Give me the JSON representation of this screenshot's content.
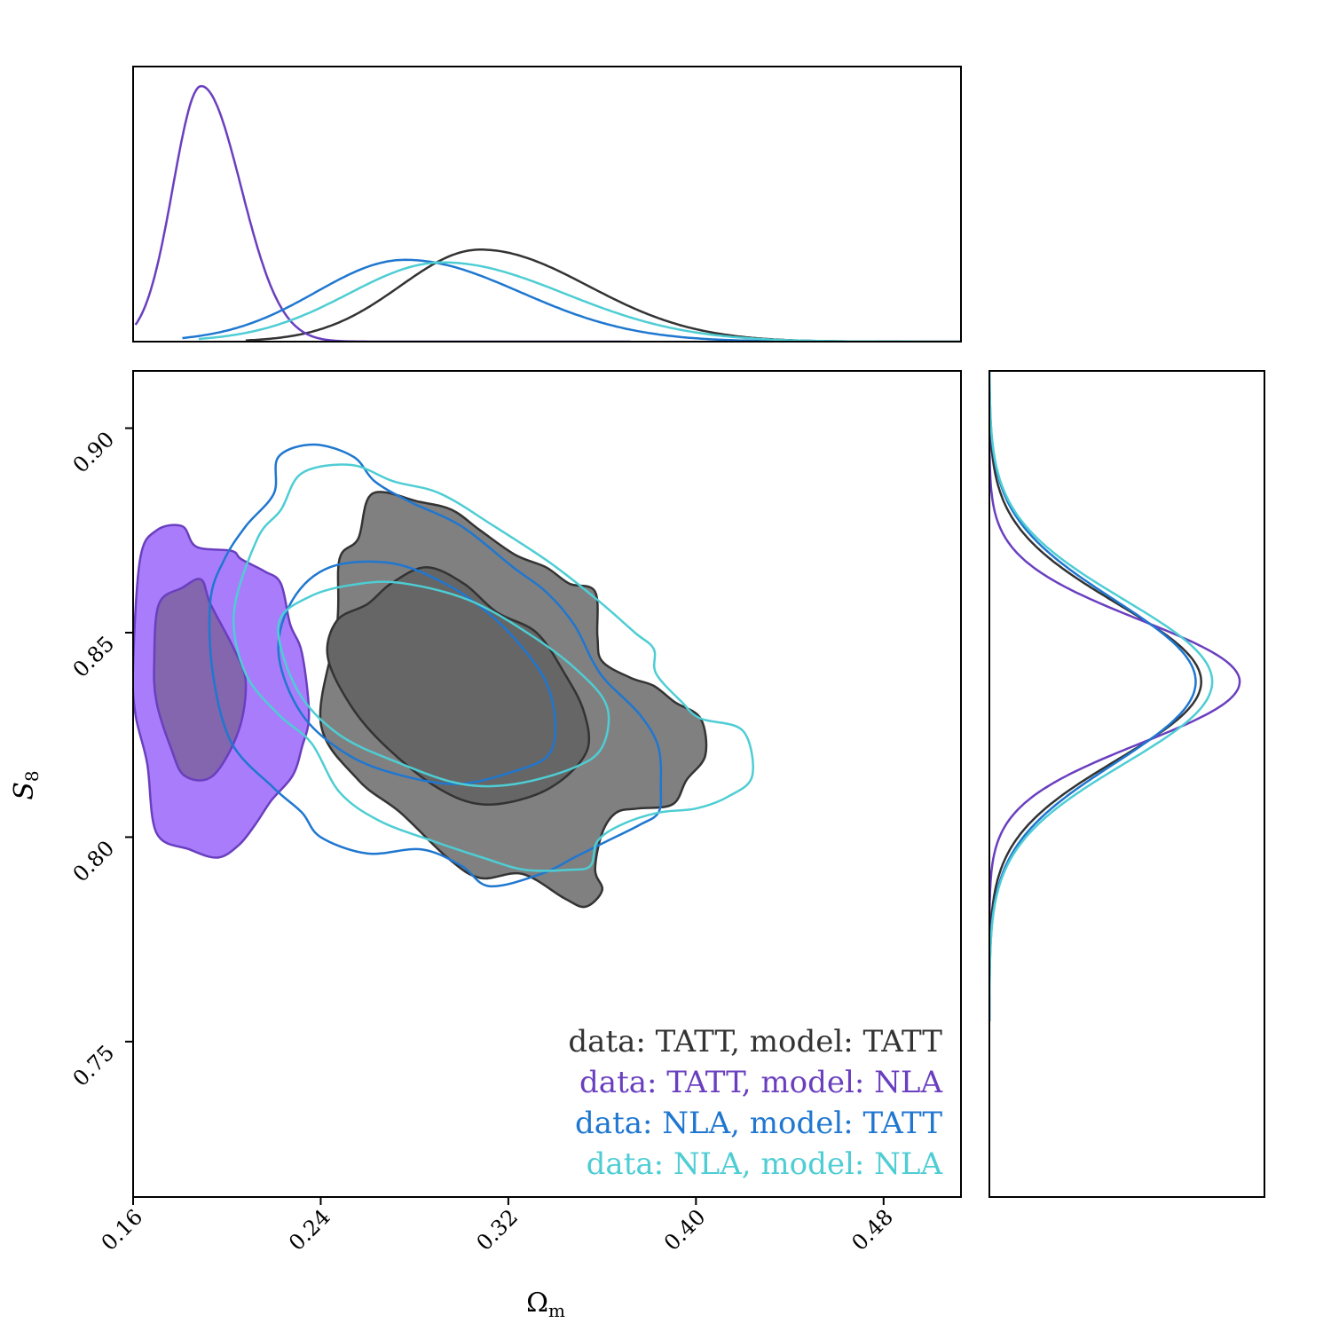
{
  "chart_data": {
    "type": "corner-contour",
    "xlabel": "Ω_m",
    "ylabel": "S_8",
    "xlim": [
      0.16,
      0.513
    ],
    "ylim": [
      0.712,
      0.914
    ],
    "xticks": [
      "0.16",
      "0.24",
      "0.32",
      "0.40",
      "0.48"
    ],
    "yticks": [
      "0.75",
      "0.80",
      "0.85",
      "0.90"
    ],
    "grid": false,
    "legend_position": "bottom-right",
    "series": [
      {
        "name": "data: TATT, model: TATT",
        "color": "#333333",
        "fill_outer": "#808080",
        "fill_inner": "#666666",
        "filled": true,
        "contour_outer": [
          [
            0.24,
            0.828
          ],
          [
            0.247,
            0.852
          ],
          [
            0.248,
            0.868
          ],
          [
            0.256,
            0.873
          ],
          [
            0.262,
            0.884
          ],
          [
            0.282,
            0.882
          ],
          [
            0.296,
            0.88
          ],
          [
            0.308,
            0.875
          ],
          [
            0.323,
            0.869
          ],
          [
            0.336,
            0.866
          ],
          [
            0.346,
            0.862
          ],
          [
            0.357,
            0.86
          ],
          [
            0.358,
            0.849
          ],
          [
            0.36,
            0.843
          ],
          [
            0.372,
            0.839
          ],
          [
            0.382,
            0.837
          ],
          [
            0.391,
            0.833
          ],
          [
            0.402,
            0.829
          ],
          [
            0.404,
            0.82
          ],
          [
            0.396,
            0.814
          ],
          [
            0.39,
            0.808
          ],
          [
            0.375,
            0.807
          ],
          [
            0.366,
            0.806
          ],
          [
            0.36,
            0.801
          ],
          [
            0.357,
            0.792
          ],
          [
            0.36,
            0.787
          ],
          [
            0.353,
            0.783
          ],
          [
            0.344,
            0.785
          ],
          [
            0.326,
            0.791
          ],
          [
            0.308,
            0.79
          ],
          [
            0.294,
            0.795
          ],
          [
            0.274,
            0.806
          ],
          [
            0.256,
            0.814
          ]
        ],
        "contour_inner": [
          [
            0.243,
            0.844
          ],
          [
            0.247,
            0.853
          ],
          [
            0.26,
            0.857
          ],
          [
            0.27,
            0.862
          ],
          [
            0.285,
            0.866
          ],
          [
            0.301,
            0.862
          ],
          [
            0.315,
            0.855
          ],
          [
            0.332,
            0.85
          ],
          [
            0.344,
            0.84
          ],
          [
            0.352,
            0.831
          ],
          [
            0.354,
            0.822
          ],
          [
            0.345,
            0.815
          ],
          [
            0.33,
            0.81
          ],
          [
            0.309,
            0.808
          ],
          [
            0.29,
            0.812
          ],
          [
            0.268,
            0.822
          ],
          [
            0.253,
            0.832
          ]
        ]
      },
      {
        "name": "data: TATT, model: NLA",
        "color": "#6a3fbf",
        "fill_outer": "#a97cfc",
        "fill_inner": "#8366ad",
        "filled": true,
        "contour_outer": [
          [
            0.16,
            0.842
          ],
          [
            0.163,
            0.868
          ],
          [
            0.17,
            0.875
          ],
          [
            0.181,
            0.876
          ],
          [
            0.187,
            0.871
          ],
          [
            0.202,
            0.87
          ],
          [
            0.206,
            0.868
          ],
          [
            0.216,
            0.865
          ],
          [
            0.223,
            0.862
          ],
          [
            0.227,
            0.852
          ],
          [
            0.232,
            0.845
          ],
          [
            0.235,
            0.83
          ],
          [
            0.232,
            0.822
          ],
          [
            0.228,
            0.815
          ],
          [
            0.219,
            0.809
          ],
          [
            0.212,
            0.803
          ],
          [
            0.205,
            0.798
          ],
          [
            0.196,
            0.795
          ],
          [
            0.184,
            0.797
          ],
          [
            0.17,
            0.801
          ],
          [
            0.166,
            0.818
          ],
          [
            0.161,
            0.83
          ]
        ],
        "contour_inner": [
          [
            0.169,
            0.843
          ],
          [
            0.171,
            0.857
          ],
          [
            0.181,
            0.861
          ],
          [
            0.189,
            0.863
          ],
          [
            0.193,
            0.857
          ],
          [
            0.203,
            0.846
          ],
          [
            0.208,
            0.838
          ],
          [
            0.205,
            0.826
          ],
          [
            0.194,
            0.815
          ],
          [
            0.182,
            0.815
          ],
          [
            0.176,
            0.822
          ],
          [
            0.17,
            0.833
          ]
        ]
      },
      {
        "name": "data: NLA, model: TATT",
        "color": "#1f77d0",
        "filled": false,
        "contour_outer": [
          [
            0.193,
            0.858
          ],
          [
            0.199,
            0.868
          ],
          [
            0.208,
            0.876
          ],
          [
            0.22,
            0.884
          ],
          [
            0.222,
            0.893
          ],
          [
            0.237,
            0.896
          ],
          [
            0.254,
            0.893
          ],
          [
            0.263,
            0.887
          ],
          [
            0.278,
            0.882
          ],
          [
            0.3,
            0.876
          ],
          [
            0.322,
            0.866
          ],
          [
            0.336,
            0.86
          ],
          [
            0.348,
            0.852
          ],
          [
            0.356,
            0.843
          ],
          [
            0.362,
            0.838
          ],
          [
            0.376,
            0.83
          ],
          [
            0.384,
            0.822
          ],
          [
            0.385,
            0.812
          ],
          [
            0.384,
            0.806
          ],
          [
            0.376,
            0.803
          ],
          [
            0.362,
            0.799
          ],
          [
            0.355,
            0.797
          ],
          [
            0.348,
            0.795
          ],
          [
            0.334,
            0.791
          ],
          [
            0.312,
            0.788
          ],
          [
            0.3,
            0.793
          ],
          [
            0.283,
            0.797
          ],
          [
            0.26,
            0.796
          ],
          [
            0.24,
            0.8
          ],
          [
            0.232,
            0.806
          ],
          [
            0.22,
            0.812
          ],
          [
            0.202,
            0.823
          ],
          [
            0.194,
            0.84
          ]
        ],
        "contour_inner": [
          [
            0.222,
            0.845
          ],
          [
            0.228,
            0.858
          ],
          [
            0.244,
            0.866
          ],
          [
            0.27,
            0.867
          ],
          [
            0.293,
            0.862
          ],
          [
            0.311,
            0.855
          ],
          [
            0.325,
            0.847
          ],
          [
            0.336,
            0.838
          ],
          [
            0.34,
            0.828
          ],
          [
            0.337,
            0.82
          ],
          [
            0.322,
            0.816
          ],
          [
            0.299,
            0.813
          ],
          [
            0.275,
            0.815
          ],
          [
            0.252,
            0.82
          ],
          [
            0.232,
            0.83
          ]
        ]
      },
      {
        "name": "data: NLA, model: NLA",
        "color": "#4ecdd4",
        "filled": false,
        "contour_outer": [
          [
            0.203,
            0.855
          ],
          [
            0.213,
            0.873
          ],
          [
            0.223,
            0.88
          ],
          [
            0.232,
            0.889
          ],
          [
            0.253,
            0.891
          ],
          [
            0.271,
            0.887
          ],
          [
            0.291,
            0.884
          ],
          [
            0.314,
            0.876
          ],
          [
            0.338,
            0.867
          ],
          [
            0.358,
            0.858
          ],
          [
            0.374,
            0.85
          ],
          [
            0.382,
            0.846
          ],
          [
            0.383,
            0.84
          ],
          [
            0.394,
            0.833
          ],
          [
            0.402,
            0.829
          ],
          [
            0.42,
            0.826
          ],
          [
            0.424,
            0.815
          ],
          [
            0.414,
            0.81
          ],
          [
            0.4,
            0.807
          ],
          [
            0.384,
            0.806
          ],
          [
            0.368,
            0.803
          ],
          [
            0.358,
            0.799
          ],
          [
            0.355,
            0.793
          ],
          [
            0.346,
            0.792
          ],
          [
            0.327,
            0.792
          ],
          [
            0.309,
            0.795
          ],
          [
            0.288,
            0.799
          ],
          [
            0.265,
            0.804
          ],
          [
            0.248,
            0.811
          ],
          [
            0.236,
            0.823
          ],
          [
            0.222,
            0.83
          ],
          [
            0.208,
            0.84
          ]
        ],
        "contour_inner": [
          [
            0.222,
            0.852
          ],
          [
            0.236,
            0.859
          ],
          [
            0.257,
            0.862
          ],
          [
            0.276,
            0.862
          ],
          [
            0.303,
            0.858
          ],
          [
            0.328,
            0.85
          ],
          [
            0.349,
            0.841
          ],
          [
            0.362,
            0.832
          ],
          [
            0.36,
            0.822
          ],
          [
            0.348,
            0.817
          ],
          [
            0.323,
            0.813
          ],
          [
            0.3,
            0.813
          ],
          [
            0.274,
            0.818
          ],
          [
            0.248,
            0.825
          ],
          [
            0.23,
            0.836
          ]
        ]
      }
    ],
    "marginals_x": [
      {
        "name": "data: TATT, model: TATT",
        "color": "#333333",
        "mean": 0.308,
        "sd_left": 0.034,
        "sd_right": 0.046,
        "peak": 0.36,
        "range": [
          0.208,
          0.513
        ]
      },
      {
        "name": "data: TATT, model: NLA",
        "color": "#6a3fbf",
        "mean": 0.189,
        "sd_left": 0.012,
        "sd_right": 0.017,
        "peak": 1.0,
        "range": [
          0.161,
          0.372
        ]
      },
      {
        "name": "data: NLA, model: TATT",
        "color": "#1f77d0",
        "mean": 0.276,
        "sd_left": 0.038,
        "sd_right": 0.049,
        "peak": 0.32,
        "range": [
          0.181,
          0.45
        ]
      },
      {
        "name": "data: NLA, model: NLA",
        "color": "#4ecdd4",
        "mean": 0.292,
        "sd_left": 0.04,
        "sd_right": 0.052,
        "peak": 0.31,
        "range": [
          0.188,
          0.513
        ]
      }
    ],
    "marginals_y": [
      {
        "name": "data: TATT, model: TATT",
        "color": "#333333",
        "mean": 0.838,
        "sd": 0.019,
        "peak": 0.77
      },
      {
        "name": "data: TATT, model: NLA",
        "color": "#6a3fbf",
        "mean": 0.838,
        "sd": 0.015,
        "peak": 0.91
      },
      {
        "name": "data: NLA, model: TATT",
        "color": "#1f77d0",
        "mean": 0.838,
        "sd": 0.02,
        "peak": 0.75
      },
      {
        "name": "data: NLA, model: NLA",
        "color": "#4ecdd4",
        "mean": 0.838,
        "sd": 0.02,
        "peak": 0.81
      }
    ]
  }
}
